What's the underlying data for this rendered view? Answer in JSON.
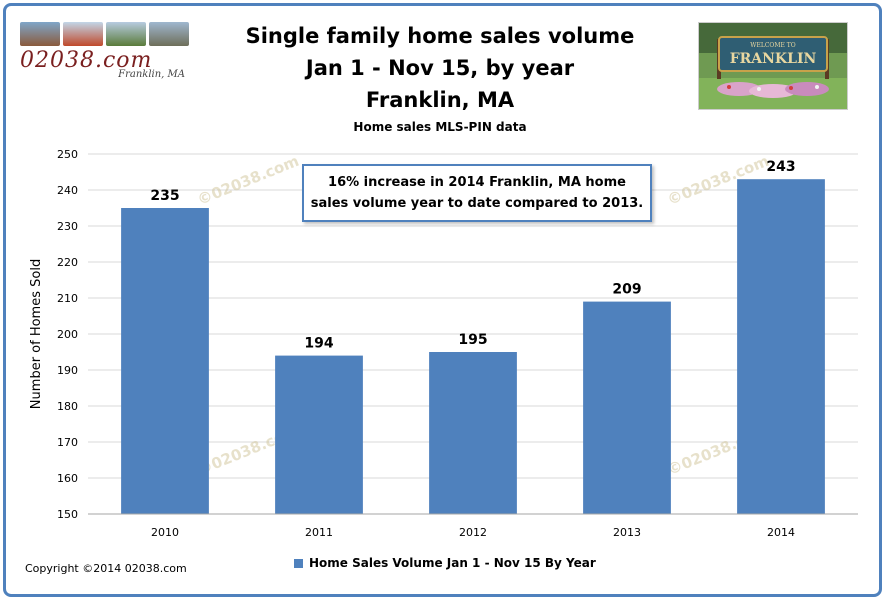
{
  "header": {
    "title_lines": [
      "Single family home sales volume",
      "Jan 1 - Nov 15, by year",
      "Franklin, MA"
    ],
    "subtitle": "Home sales MLS-PIN data"
  },
  "logo": {
    "site": "02038.com",
    "town": "Franklin, MA"
  },
  "sign_photo": {
    "sign_text": "FRANKLIN",
    "sign_top": "WELCOME TO"
  },
  "annotation": {
    "text": "16% increase in 2014 Franklin, MA home sales volume year to date compared to 2013."
  },
  "watermark": "©02038.com",
  "copyright": "Copyright ©2014 02038.com",
  "colors": {
    "bar": "#4f81bd",
    "frame": "#4f81bd",
    "grid": "#d9d9d9"
  },
  "chart_data": {
    "type": "bar",
    "categories": [
      "2010",
      "2011",
      "2012",
      "2013",
      "2014"
    ],
    "series": [
      {
        "name": "Home Sales Volume Jan 1 - Nov 15 By Year",
        "values": [
          235,
          194,
          195,
          209,
          243
        ]
      }
    ],
    "ylabel": "Number of Homes Sold",
    "xlabel": "",
    "ylim": [
      150,
      250
    ],
    "yticks": [
      150,
      160,
      170,
      180,
      190,
      200,
      210,
      220,
      230,
      240,
      250
    ],
    "grid": true,
    "legend_position": "bottom",
    "data_labels": true
  }
}
